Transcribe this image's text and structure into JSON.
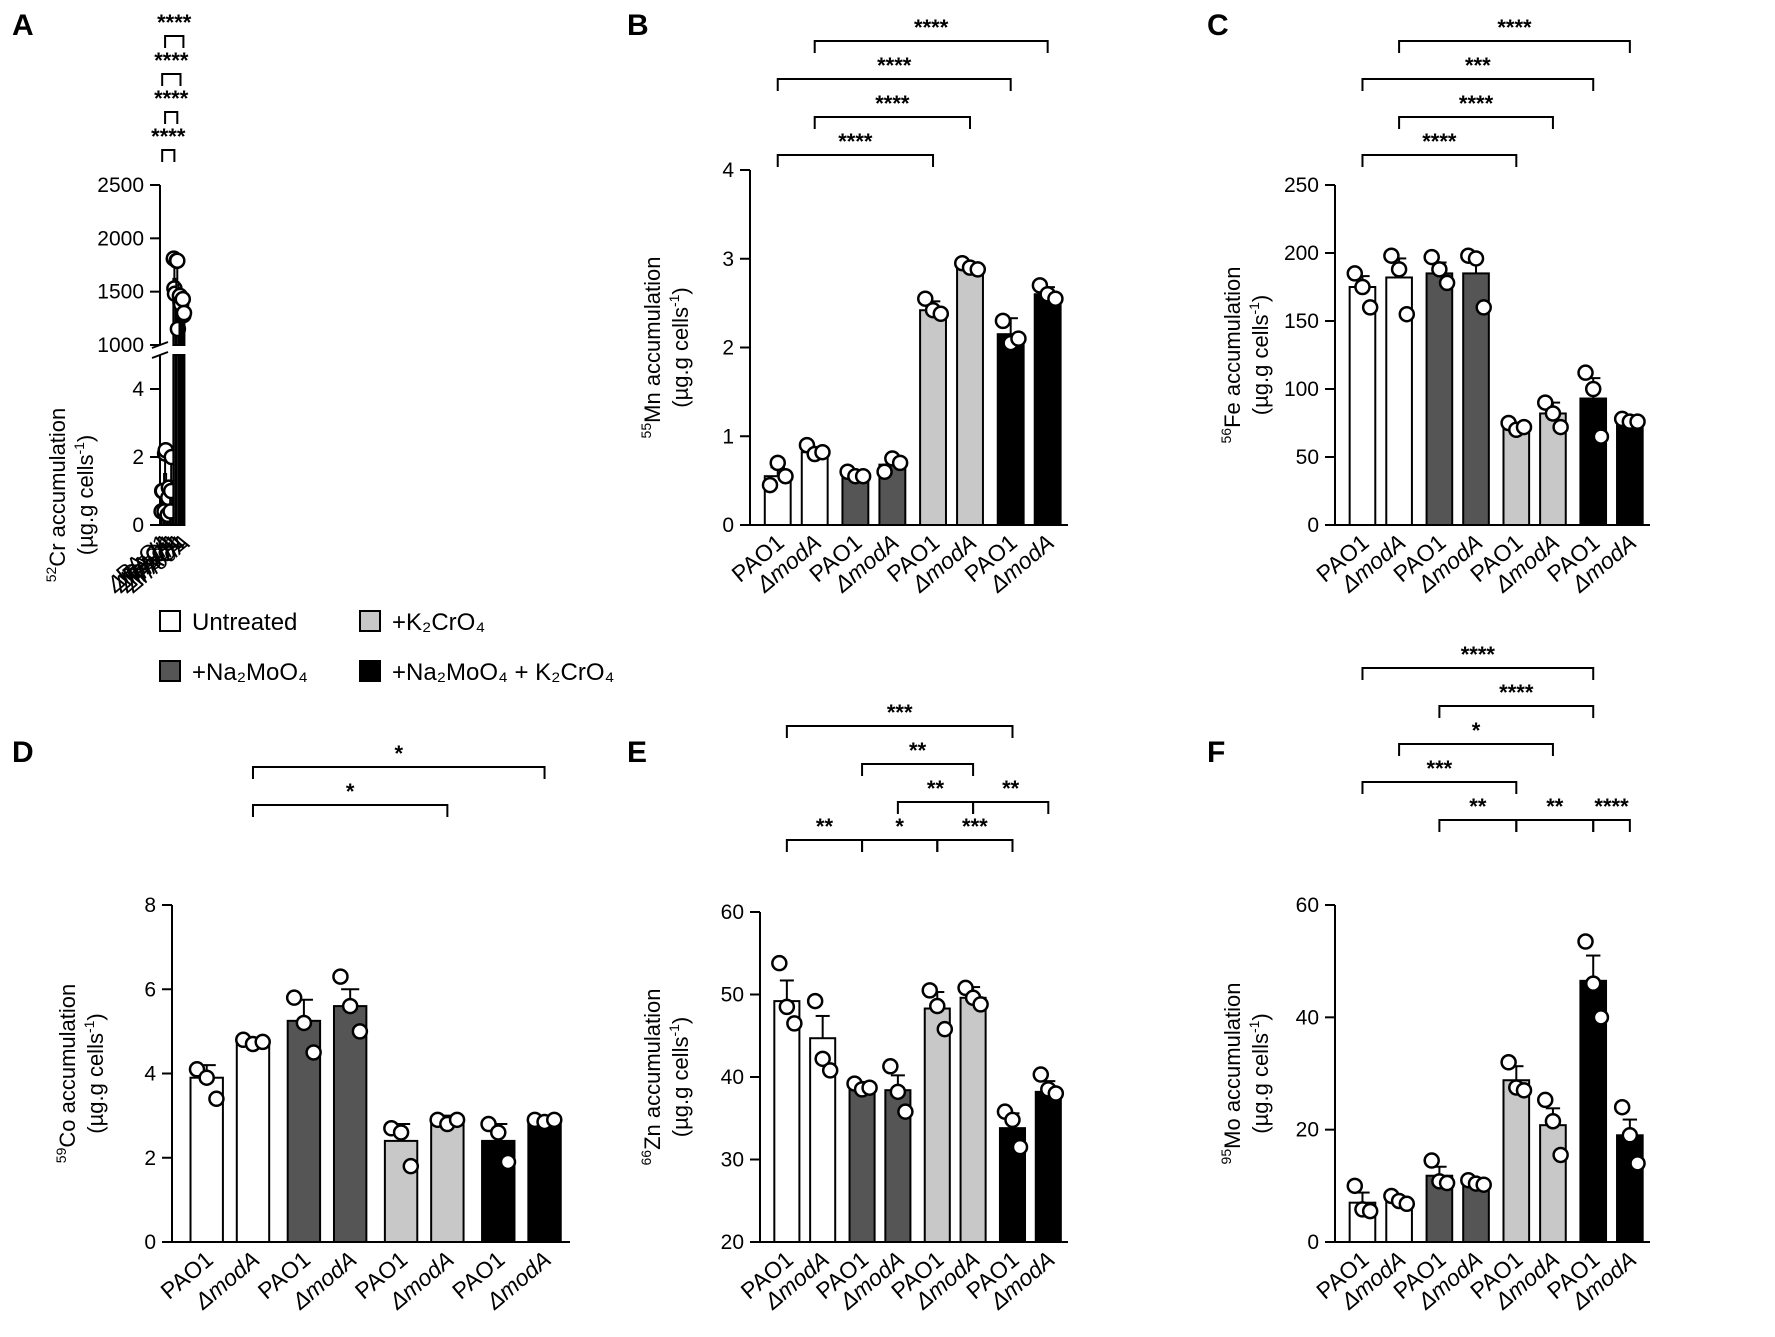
{
  "colors": {
    "Untreated": "#ffffff",
    "+Na2MoO4": "#555555",
    "+K2CrO4": "#c8c8c8",
    "+Na2MoO4 + K2CrO4": "#000000"
  },
  "legend": [
    {
      "key": "Untreated",
      "label": "Untreated"
    },
    {
      "key": "+K2CrO4",
      "label": "+K₂CrO₄"
    },
    {
      "key": "+Na2MoO4",
      "label": "+Na₂MoO₄"
    },
    {
      "key": "+Na2MoO4 + K2CrO4",
      "label": "+Na₂MoO₄ + K₂CrO₄"
    }
  ],
  "chart_data": [
    {
      "panel": "A",
      "type": "bar",
      "ylabel_element": "Cr",
      "ylabel_isotope": "52",
      "ylabel_line1": "accumulation",
      "ylabel_line2": "(µg.g cells",
      "ylabel_sup": "-1",
      "ylabel_close": ")",
      "axis_break": true,
      "ylim_lower": [
        0,
        5
      ],
      "ylim_upper": [
        1000,
        2500
      ],
      "yticks_lower": [
        "0",
        "2",
        "4"
      ],
      "yticks_upper": [
        "1000",
        "1500",
        "2000",
        "2500"
      ],
      "categories": [
        "PAO1",
        "ΔmodA",
        "PAO1",
        "ΔmodA",
        "PAO1",
        "ΔmodA",
        "PAO1",
        "ΔmodA"
      ],
      "groups": [
        "Untreated",
        "Untreated",
        "+Na2MoO4",
        "+Na2MoO4",
        "+K2CrO4",
        "+K2CrO4",
        "+Na2MoO4 + K2CrO4",
        "+Na2MoO4 + K2CrO4"
      ],
      "means": [
        0.8,
        1.5,
        0.8,
        1.2,
        1620,
        1590,
        1400,
        1330
      ],
      "sem": [
        0.3,
        0.7,
        0.3,
        0.6,
        110,
        230,
        60,
        60
      ],
      "points": [
        [
          0.4,
          1.0,
          1.0
        ],
        [
          0.4,
          2.1,
          2.2
        ],
        [
          0.3,
          0.8,
          1.1
        ],
        [
          0.4,
          1.0,
          2.0
        ],
        [
          1810,
          1530,
          1480
        ],
        [
          1790,
          1790,
          1150
        ],
        [
          1460,
          1400,
          1380
        ],
        [
          1430,
          1280,
          1300
        ]
      ],
      "comparisons": [
        {
          "from": 0,
          "to": 4,
          "label": "****"
        },
        {
          "from": 1,
          "to": 5,
          "label": "****"
        },
        {
          "from": 0,
          "to": 6,
          "label": "****"
        },
        {
          "from": 1,
          "to": 7,
          "label": "****"
        }
      ]
    },
    {
      "panel": "B",
      "type": "bar",
      "ylabel_element": "Mn",
      "ylabel_isotope": "55",
      "ylabel_line1": "accumulation",
      "ylabel_line2": "(µg.g cells",
      "ylabel_sup": "-1",
      "ylabel_close": ")",
      "ylim": [
        0,
        4
      ],
      "yticks": [
        "0",
        "1",
        "2",
        "3",
        "4"
      ],
      "categories": [
        "PAO1",
        "ΔmodA",
        "PAO1",
        "ΔmodA",
        "PAO1",
        "ΔmodA",
        "PAO1",
        "ΔmodA"
      ],
      "groups": [
        "Untreated",
        "Untreated",
        "+Na2MoO4",
        "+Na2MoO4",
        "+K2CrO4",
        "+K2CrO4",
        "+Na2MoO4 + K2CrO4",
        "+Na2MoO4 + K2CrO4"
      ],
      "means": [
        0.55,
        0.82,
        0.55,
        0.68,
        2.42,
        2.9,
        2.15,
        2.6
      ],
      "sem": [
        0.1,
        0.05,
        0.05,
        0.1,
        0.1,
        0.05,
        0.18,
        0.08
      ],
      "points": [
        [
          0.45,
          0.7,
          0.55
        ],
        [
          0.9,
          0.8,
          0.82
        ],
        [
          0.6,
          0.55,
          0.55
        ],
        [
          0.6,
          0.75,
          0.7
        ],
        [
          2.55,
          2.42,
          2.38
        ],
        [
          2.95,
          2.9,
          2.88
        ],
        [
          2.3,
          2.05,
          2.1
        ],
        [
          2.7,
          2.6,
          2.55
        ]
      ],
      "comparisons": [
        {
          "from": 0,
          "to": 4,
          "label": "****"
        },
        {
          "from": 1,
          "to": 5,
          "label": "****"
        },
        {
          "from": 0,
          "to": 6,
          "label": "****"
        },
        {
          "from": 1,
          "to": 7,
          "label": "****"
        }
      ]
    },
    {
      "panel": "C",
      "type": "bar",
      "ylabel_element": "Fe",
      "ylabel_isotope": "56",
      "ylabel_line1": "accumulation",
      "ylabel_line2": "(µg.g cells",
      "ylabel_sup": "-1",
      "ylabel_close": ")",
      "ylim": [
        0,
        250
      ],
      "yticks": [
        "0",
        "50",
        "100",
        "150",
        "200",
        "250"
      ],
      "categories": [
        "PAO1",
        "ΔmodA",
        "PAO1",
        "ΔmodA",
        "PAO1",
        "ΔmodA",
        "PAO1",
        "ΔmodA"
      ],
      "groups": [
        "Untreated",
        "Untreated",
        "+Na2MoO4",
        "+Na2MoO4",
        "+K2CrO4",
        "+K2CrO4",
        "+Na2MoO4 + K2CrO4",
        "+Na2MoO4 + K2CrO4"
      ],
      "means": [
        175,
        182,
        185,
        185,
        72,
        82,
        93,
        76
      ],
      "sem": [
        8,
        14,
        8,
        12,
        3,
        8,
        15,
        2
      ],
      "points": [
        [
          185,
          175,
          160
        ],
        [
          198,
          188,
          155
        ],
        [
          197,
          188,
          178
        ],
        [
          198,
          196,
          160
        ],
        [
          75,
          70,
          72
        ],
        [
          90,
          82,
          72
        ],
        [
          112,
          100,
          65
        ],
        [
          78,
          76,
          76
        ]
      ],
      "comparisons": [
        {
          "from": 0,
          "to": 4,
          "label": "****"
        },
        {
          "from": 1,
          "to": 5,
          "label": "****"
        },
        {
          "from": 0,
          "to": 6,
          "label": "***"
        },
        {
          "from": 1,
          "to": 7,
          "label": "****"
        }
      ]
    },
    {
      "panel": "D",
      "type": "bar",
      "ylabel_element": "Co",
      "ylabel_isotope": "59",
      "ylabel_line1": "accumulation",
      "ylabel_line2": "(µg.g cells",
      "ylabel_sup": "-1",
      "ylabel_close": ")",
      "ylim": [
        0,
        8
      ],
      "yticks": [
        "0",
        "2",
        "4",
        "6",
        "8"
      ],
      "categories": [
        "PAO1",
        "ΔmodA",
        "PAO1",
        "ΔmodA",
        "PAO1",
        "ΔmodA",
        "PAO1",
        "ΔmodA"
      ],
      "groups": [
        "Untreated",
        "Untreated",
        "+Na2MoO4",
        "+Na2MoO4",
        "+K2CrO4",
        "+K2CrO4",
        "+Na2MoO4 + K2CrO4",
        "+Na2MoO4 + K2CrO4"
      ],
      "means": [
        3.9,
        4.75,
        5.25,
        5.6,
        2.4,
        2.85,
        2.4,
        2.85
      ],
      "sem": [
        0.3,
        0.1,
        0.5,
        0.4,
        0.4,
        0.15,
        0.4,
        0.1
      ],
      "points": [
        [
          4.1,
          3.9,
          3.4
        ],
        [
          4.8,
          4.7,
          4.75
        ],
        [
          5.8,
          5.2,
          4.5
        ],
        [
          6.3,
          5.6,
          5.0
        ],
        [
          2.7,
          2.6,
          1.8
        ],
        [
          2.9,
          2.8,
          2.9
        ],
        [
          2.8,
          2.6,
          1.9
        ],
        [
          2.9,
          2.85,
          2.9
        ]
      ],
      "comparisons": [
        {
          "from": 1,
          "to": 5,
          "label": "*"
        },
        {
          "from": 1,
          "to": 7,
          "label": "*"
        }
      ]
    },
    {
      "panel": "E",
      "type": "bar",
      "ylabel_element": "Zn",
      "ylabel_isotope": "66",
      "ylabel_line1": "accumulation",
      "ylabel_line2": "(µg.g cells",
      "ylabel_sup": "-1",
      "ylabel_close": ")",
      "ylim": [
        20,
        60
      ],
      "yticks": [
        "20",
        "30",
        "40",
        "50",
        "60"
      ],
      "categories": [
        "PAO1",
        "ΔmodA",
        "PAO1",
        "ΔmodA",
        "PAO1",
        "ΔmodA",
        "PAO1",
        "ΔmodA"
      ],
      "groups": [
        "Untreated",
        "Untreated",
        "+Na2MoO4",
        "+Na2MoO4",
        "+K2CrO4",
        "+K2CrO4",
        "+Na2MoO4 + K2CrO4",
        "+Na2MoO4 + K2CrO4"
      ],
      "means": [
        49.2,
        44.7,
        38.8,
        38.4,
        48.3,
        49.6,
        33.8,
        38.2
      ],
      "sem": [
        2.5,
        2.7,
        0.6,
        1.8,
        2.0,
        1.3,
        1.8,
        1.3
      ],
      "points": [
        [
          53.8,
          48.5,
          46.5
        ],
        [
          49.2,
          42.2,
          40.8
        ],
        [
          39.2,
          38.5,
          38.7
        ],
        [
          41.3,
          38.2,
          35.8
        ],
        [
          50.5,
          48.6,
          45.8
        ],
        [
          50.8,
          49.6,
          48.8
        ],
        [
          35.8,
          34.8,
          31.5
        ],
        [
          40.3,
          38.5,
          38.0
        ]
      ],
      "comparisons": [
        {
          "from": 0,
          "to": 2,
          "label": "**"
        },
        {
          "from": 2,
          "to": 4,
          "label": "*"
        },
        {
          "from": 4,
          "to": 6,
          "label": "***"
        },
        {
          "from": 3,
          "to": 5,
          "label": "**"
        },
        {
          "from": 5,
          "to": 7,
          "label": "**"
        },
        {
          "from": 2,
          "to": 5,
          "label": "**"
        },
        {
          "from": 0,
          "to": 6,
          "label": "***"
        }
      ]
    },
    {
      "panel": "F",
      "type": "bar",
      "ylabel_element": "Mo",
      "ylabel_isotope": "95",
      "ylabel_line1": "accumulation",
      "ylabel_line2": "(µg.g cells",
      "ylabel_sup": "-1",
      "ylabel_close": ")",
      "ylim": [
        0,
        60
      ],
      "yticks": [
        "0",
        "20",
        "40",
        "60"
      ],
      "categories": [
        "PAO1",
        "ΔmodA",
        "PAO1",
        "ΔmodA",
        "PAO1",
        "ΔmodA",
        "PAO1",
        "ΔmodA"
      ],
      "groups": [
        "Untreated",
        "Untreated",
        "+Na2MoO4",
        "+Na2MoO4",
        "+K2CrO4",
        "+K2CrO4",
        "+Na2MoO4 + K2CrO4",
        "+Na2MoO4 + K2CrO4"
      ],
      "means": [
        7.0,
        7.3,
        11.8,
        10.4,
        28.8,
        20.8,
        46.5,
        19.0
      ],
      "sem": [
        1.8,
        0.5,
        1.6,
        0.5,
        2.5,
        3.0,
        4.5,
        2.8
      ],
      "points": [
        [
          10.0,
          5.8,
          5.5
        ],
        [
          8.2,
          7.3,
          6.8
        ],
        [
          14.5,
          10.8,
          10.5
        ],
        [
          11.0,
          10.4,
          10.2
        ],
        [
          32.0,
          27.5,
          27.0
        ],
        [
          25.3,
          21.5,
          15.5
        ],
        [
          53.5,
          46.0,
          40.0
        ],
        [
          24.0,
          19.0,
          14.0
        ]
      ],
      "comparisons": [
        {
          "from": 2,
          "to": 4,
          "label": "**"
        },
        {
          "from": 4,
          "to": 6,
          "label": "**"
        },
        {
          "from": 6,
          "to": 7,
          "label": "****"
        },
        {
          "from": 0,
          "to": 4,
          "label": "***"
        },
        {
          "from": 1,
          "to": 5,
          "label": "*"
        },
        {
          "from": 2,
          "to": 6,
          "label": "****"
        },
        {
          "from": 0,
          "to": 6,
          "label": "****"
        }
      ]
    }
  ]
}
